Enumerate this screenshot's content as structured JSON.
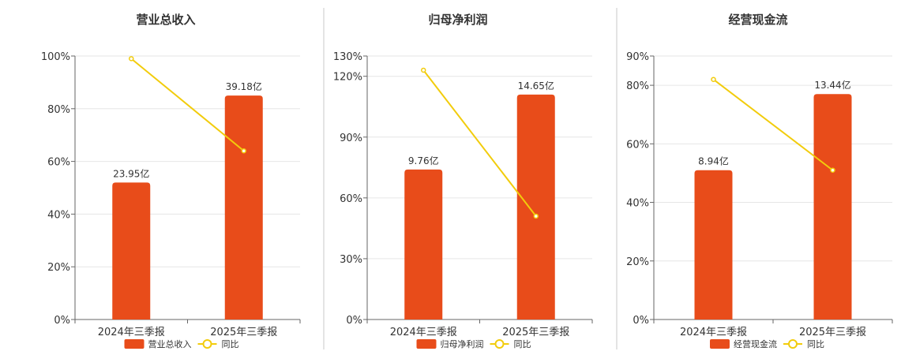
{
  "colors": {
    "bar": "#e84c1a",
    "line": "#f2cc0c",
    "grid": "#e6e6e6",
    "axis": "#666666",
    "divider": "#c8c8c8"
  },
  "chart_data": [
    {
      "type": "bar",
      "title": "营业总收入",
      "categories": [
        "2024年三季报",
        "2025年三季报"
      ],
      "bar_values": [
        52,
        85
      ],
      "bar_labels": [
        "23.95亿",
        "39.18亿"
      ],
      "line_values": [
        99,
        64
      ],
      "ylim": [
        0,
        100
      ],
      "yticks": [
        0,
        20,
        40,
        60,
        80,
        100
      ],
      "ytick_labels": [
        "0%",
        "20%",
        "40%",
        "60%",
        "80%",
        "100%"
      ],
      "legend": [
        "营业总收入",
        "同比"
      ],
      "legend_position": "bottom"
    },
    {
      "type": "bar",
      "title": "归母净利润",
      "categories": [
        "2024年三季报",
        "2025年三季报"
      ],
      "bar_values": [
        74,
        111
      ],
      "bar_labels": [
        "9.76亿",
        "14.65亿"
      ],
      "line_values": [
        123,
        51
      ],
      "ylim": [
        0,
        130
      ],
      "yticks": [
        0,
        30,
        60,
        90,
        120,
        130
      ],
      "ytick_labels": [
        "0%",
        "30%",
        "60%",
        "90%",
        "120%",
        "130%"
      ],
      "legend": [
        "归母净利润",
        "同比"
      ],
      "legend_position": "bottom"
    },
    {
      "type": "bar",
      "title": "经营现金流",
      "categories": [
        "2024年三季报",
        "2025年三季报"
      ],
      "bar_values": [
        51,
        77
      ],
      "bar_labels": [
        "8.94亿",
        "13.44亿"
      ],
      "line_values": [
        82,
        51
      ],
      "ylim": [
        0,
        90
      ],
      "yticks": [
        0,
        20,
        40,
        60,
        80,
        90
      ],
      "ytick_labels": [
        "0%",
        "20%",
        "40%",
        "60%",
        "80%",
        "90%"
      ],
      "legend": [
        "经营现金流",
        "同比"
      ],
      "legend_position": "bottom"
    }
  ]
}
